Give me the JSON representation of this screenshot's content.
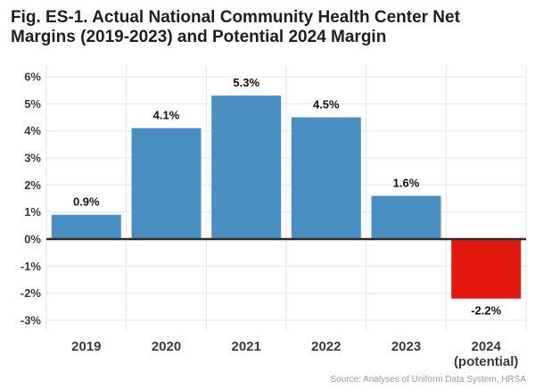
{
  "title": "Fig. ES-1. Actual National Community Health Center Net Margins (2019-2023) and Potential 2024 Margin",
  "source": "Source: Analyses of Uniform Data System, HRSA",
  "colors": {
    "actual_bar": "#4a8fc4",
    "potential_bar": "#e3190f",
    "zero_line": "#2b2b2b",
    "grid": "#e6e6e6"
  },
  "chart_data": {
    "type": "bar",
    "title": "Fig. ES-1. Actual National Community Health Center Net Margins (2019-2023) and Potential 2024 Margin",
    "xlabel": "",
    "ylabel": "",
    "ylim": [
      -3.5,
      6.5
    ],
    "grid": true,
    "categories": [
      [
        "2019"
      ],
      [
        "2020"
      ],
      [
        "2021"
      ],
      [
        "2022"
      ],
      [
        "2023"
      ],
      [
        "2024",
        "(potential)"
      ]
    ],
    "values": [
      0.9,
      4.1,
      5.3,
      4.5,
      1.6,
      -2.2
    ],
    "data_labels": [
      "0.9%",
      "4.1%",
      "5.3%",
      "4.5%",
      "1.6%",
      "-2.2%"
    ],
    "bar_types": [
      "actual",
      "actual",
      "actual",
      "actual",
      "actual",
      "potential"
    ],
    "yticks": [
      {
        "value": 6,
        "label": "6%"
      },
      {
        "value": 5,
        "label": "5%"
      },
      {
        "value": 4,
        "label": "4%"
      },
      {
        "value": 3,
        "label": "3%"
      },
      {
        "value": 2,
        "label": "2%"
      },
      {
        "value": 1,
        "label": "1%"
      },
      {
        "value": 0,
        "label": "0%"
      },
      {
        "value": -1,
        "label": "-1%"
      },
      {
        "value": -2,
        "label": "-2%"
      },
      {
        "value": -3,
        "label": "-3%"
      }
    ]
  }
}
